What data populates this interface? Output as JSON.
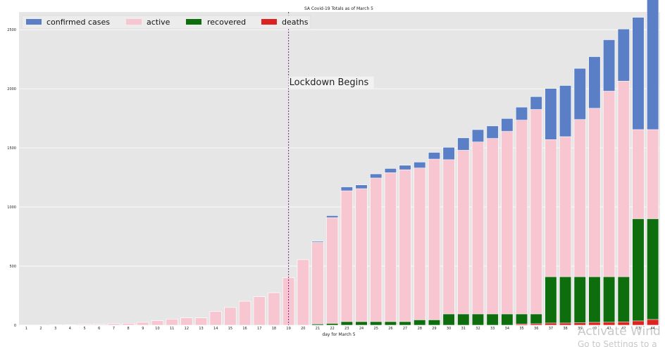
{
  "chart_data": {
    "type": "bar",
    "title": "SA Covid-19 Totals as of March 5",
    "xlabel": "day for March 5",
    "ylabel": "",
    "ylim": [
      0,
      2650
    ],
    "y_ticks": [
      0,
      500,
      1000,
      1500,
      2000,
      2500
    ],
    "grid": true,
    "legend_position": "top-left",
    "categories": [
      "1",
      "2",
      "3",
      "4",
      "5",
      "6",
      "7",
      "8",
      "9",
      "10",
      "11",
      "12",
      "13",
      "14",
      "15",
      "16",
      "17",
      "18",
      "19",
      "20",
      "21",
      "22",
      "23",
      "24",
      "25",
      "26",
      "27",
      "28",
      "29",
      "30",
      "31",
      "32",
      "33",
      "34",
      "35",
      "36",
      "37",
      "38",
      "39",
      "40",
      "41",
      "42",
      "43",
      "44"
    ],
    "series": [
      {
        "name": "confirmed cases",
        "color": "#5b7fc7",
        "values": [
          1,
          1,
          3,
          3,
          7,
          7,
          13,
          16,
          24,
          38,
          51,
          62,
          62,
          116,
          150,
          202,
          240,
          274,
          402,
          554,
          709,
          927,
          1170,
          1187,
          1280,
          1326,
          1353,
          1380,
          1462,
          1505,
          1585,
          1655,
          1686,
          1749,
          1845,
          1934,
          2003,
          2028,
          2173,
          2272,
          2415,
          2506,
          2605,
          2783
        ]
      },
      {
        "name": "active",
        "color": "#f7c6d0",
        "values": [
          1,
          1,
          3,
          3,
          7,
          7,
          13,
          16,
          24,
          38,
          51,
          62,
          62,
          116,
          150,
          202,
          240,
          274,
          402,
          554,
          700,
          910,
          1137,
          1155,
          1245,
          1290,
          1315,
          1330,
          1405,
          1400,
          1480,
          1550,
          1580,
          1640,
          1735,
          1825,
          1570,
          1595,
          1740,
          1835,
          1980,
          2065,
          1655,
          1655
        ]
      },
      {
        "name": "recovered",
        "color": "#0e6e0e",
        "values": [
          0,
          0,
          0,
          0,
          0,
          0,
          0,
          0,
          0,
          0,
          0,
          0,
          0,
          0,
          0,
          0,
          0,
          0,
          0,
          0,
          10,
          15,
          30,
          30,
          30,
          30,
          30,
          45,
          45,
          95,
          95,
          95,
          95,
          95,
          95,
          95,
          410,
          410,
          410,
          410,
          410,
          410,
          900,
          900
        ]
      },
      {
        "name": "deaths",
        "color": "#dd2222",
        "values": [
          0,
          0,
          0,
          0,
          0,
          0,
          0,
          0,
          0,
          0,
          0,
          0,
          0,
          0,
          0,
          0,
          0,
          0,
          0,
          0,
          0,
          0,
          0,
          0,
          0,
          0,
          0,
          0,
          0,
          0,
          0,
          0,
          0,
          0,
          10,
          12,
          18,
          18,
          20,
          24,
          25,
          28,
          36,
          48
        ]
      }
    ],
    "annotations": [
      {
        "text": "Lockdown Begins",
        "x": "19",
        "y": 2050,
        "type": "vertical-dashed-line",
        "color": "#7a1f8a"
      }
    ]
  },
  "watermark": {
    "line1": "Activate Wind",
    "line2": "Go to Settings to a"
  }
}
